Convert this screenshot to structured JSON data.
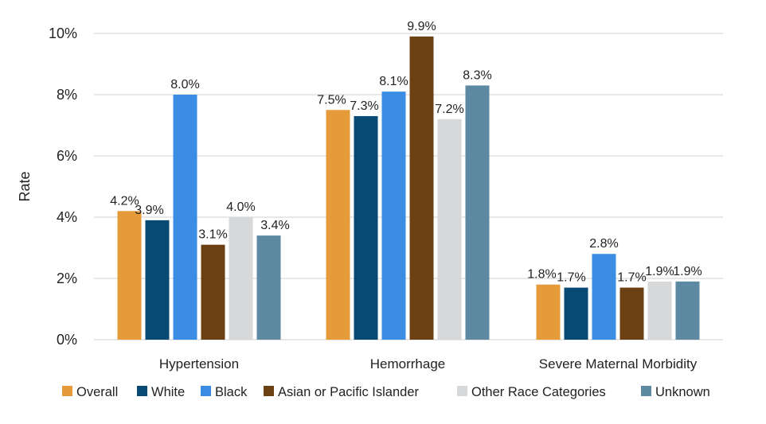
{
  "chart_data": {
    "type": "bar",
    "ylabel": "Rate",
    "xlabel": "",
    "ylim": [
      0,
      10
    ],
    "yticks": [
      "0%",
      "2%",
      "4%",
      "6%",
      "8%",
      "10%"
    ],
    "grid": true,
    "legend_position": "bottom",
    "categories": [
      "Hypertension",
      "Hemorrhage",
      "Severe Maternal Morbidity"
    ],
    "series": [
      {
        "name": "Overall",
        "color": "#E59B3A",
        "values": [
          4.2,
          7.5,
          1.8
        ],
        "labels": [
          "4.2%",
          "7.5%",
          "1.8%"
        ]
      },
      {
        "name": "White",
        "color": "#084A73",
        "values": [
          3.9,
          7.3,
          1.7
        ],
        "labels": [
          "3.9%",
          "7.3%",
          "1.7%"
        ]
      },
      {
        "name": "Black",
        "color": "#3A8DE3",
        "values": [
          8.0,
          8.1,
          2.8
        ],
        "labels": [
          "8.0%",
          "8.1%",
          "2.8%"
        ]
      },
      {
        "name": "Asian or Pacific Islander",
        "color": "#6B4114",
        "values": [
          3.1,
          9.9,
          1.7
        ],
        "labels": [
          "3.1%",
          "9.9%",
          "1.7%"
        ]
      },
      {
        "name": "Other Race Categories",
        "color": "#D6D8DA",
        "values": [
          4.0,
          7.2,
          1.9
        ],
        "labels": [
          "4.0%",
          "7.2%",
          "1.9%"
        ]
      },
      {
        "name": "Unknown",
        "color": "#5D89A2",
        "values": [
          3.4,
          8.3,
          1.9
        ],
        "labels": [
          "3.4%",
          "8.3%",
          "1.9%"
        ]
      }
    ]
  }
}
